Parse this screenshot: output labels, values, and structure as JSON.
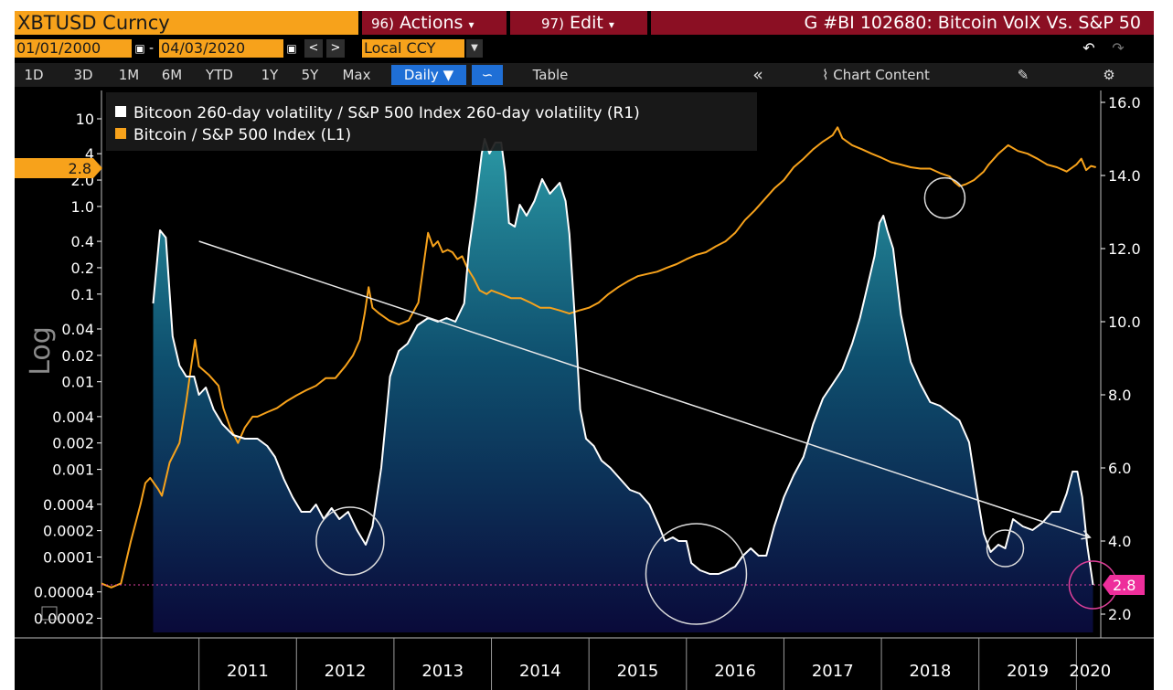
{
  "header": {
    "ticker": "XBTUSD Curncy",
    "actions_num": "96)",
    "actions_label": "Actions",
    "edit_num": "97)",
    "edit_label": "Edit",
    "title": "G #BI 102680: Bitcoin VolX Vs. S&P 50"
  },
  "toolbar": {
    "start_date": "01/01/2000",
    "end_date": "04/03/2020",
    "currency": "Local CCY",
    "periods": [
      "1D",
      "3D",
      "1M",
      "6M",
      "YTD",
      "1Y",
      "5Y",
      "Max"
    ],
    "frequency": "Daily ▼",
    "table_label": "Table",
    "chart_content_label": "Chart Content",
    "collapse_glyph": "«",
    "undo_glyph": "↶",
    "redo_glyph": "↷",
    "gear_glyph": "⚙",
    "edit_glyph": "✎"
  },
  "colors": {
    "orange": "#f7a21b",
    "white_series": "#ffffff",
    "area_top": "#1e8694",
    "area_bottom": "#0a0a3a",
    "ref_line": "#e040a0",
    "header_red": "#8b0f23"
  },
  "chart_data": {
    "type": "line",
    "log_label": "Log",
    "x_labels": [
      "2011",
      "2012",
      "2013",
      "2014",
      "2015",
      "2016",
      "2017",
      "2018",
      "2019",
      "2020"
    ],
    "left_axis": {
      "scale": "log",
      "ticks": [
        "10",
        "4",
        "2.0",
        "1.0",
        "0.4",
        "0.2",
        "0.1",
        "0.04",
        "0.02",
        "0.01",
        "0.004",
        "0.002",
        "0.001",
        "0.0004",
        "0.0002",
        "0.0001",
        "0.00004",
        "0.00002"
      ],
      "current_value_label": "2.8"
    },
    "right_axis": {
      "ticks": [
        "16.0",
        "14.0",
        "12.0",
        "10.0",
        "8.0",
        "6.0",
        "4.0",
        "2.0"
      ],
      "range": [
        2.0,
        16.0
      ],
      "current_value_label": "2.8",
      "reference_line": 2.8
    },
    "series": [
      {
        "name": "Bitcoon 260-day volatility / S&P 500 Index 260-day volatility (R1)",
        "axis": "right",
        "style": "area",
        "points": [
          [
            2010.53,
            10.5
          ],
          [
            2010.6,
            12.5
          ],
          [
            2010.66,
            12.3
          ],
          [
            2010.73,
            9.6
          ],
          [
            2010.8,
            8.8
          ],
          [
            2010.87,
            8.5
          ],
          [
            2010.95,
            8.5
          ],
          [
            2011.0,
            8.0
          ],
          [
            2011.07,
            8.2
          ],
          [
            2011.15,
            7.6
          ],
          [
            2011.24,
            7.2
          ],
          [
            2011.35,
            6.9
          ],
          [
            2011.47,
            6.8
          ],
          [
            2011.6,
            6.8
          ],
          [
            2011.7,
            6.6
          ],
          [
            2011.78,
            6.3
          ],
          [
            2011.87,
            5.7
          ],
          [
            2011.96,
            5.2
          ],
          [
            2012.05,
            4.8
          ],
          [
            2012.14,
            4.8
          ],
          [
            2012.2,
            5.0
          ],
          [
            2012.28,
            4.6
          ],
          [
            2012.36,
            4.9
          ],
          [
            2012.44,
            4.6
          ],
          [
            2012.53,
            4.8
          ],
          [
            2012.62,
            4.3
          ],
          [
            2012.71,
            3.9
          ],
          [
            2012.78,
            4.4
          ],
          [
            2012.87,
            6.0
          ],
          [
            2012.96,
            8.5
          ],
          [
            2013.05,
            9.2
          ],
          [
            2013.14,
            9.4
          ],
          [
            2013.24,
            9.9
          ],
          [
            2013.35,
            10.1
          ],
          [
            2013.45,
            10.0
          ],
          [
            2013.54,
            10.1
          ],
          [
            2013.63,
            10.0
          ],
          [
            2013.72,
            10.5
          ],
          [
            2013.77,
            12.0
          ],
          [
            2013.84,
            13.3
          ],
          [
            2013.9,
            14.6
          ],
          [
            2013.93,
            15.0
          ],
          [
            2013.98,
            14.6
          ],
          [
            2014.04,
            14.9
          ],
          [
            2014.1,
            14.9
          ],
          [
            2014.14,
            14.1
          ],
          [
            2014.18,
            12.7
          ],
          [
            2014.24,
            12.6
          ],
          [
            2014.29,
            13.2
          ],
          [
            2014.36,
            12.9
          ],
          [
            2014.44,
            13.3
          ],
          [
            2014.52,
            13.9
          ],
          [
            2014.6,
            13.5
          ],
          [
            2014.7,
            13.8
          ],
          [
            2014.76,
            13.3
          ],
          [
            2014.8,
            12.4
          ],
          [
            2014.87,
            9.5
          ],
          [
            2014.91,
            7.6
          ],
          [
            2014.97,
            6.8
          ],
          [
            2015.05,
            6.6
          ],
          [
            2015.13,
            6.2
          ],
          [
            2015.22,
            6.0
          ],
          [
            2015.32,
            5.7
          ],
          [
            2015.42,
            5.4
          ],
          [
            2015.52,
            5.3
          ],
          [
            2015.62,
            5.0
          ],
          [
            2015.72,
            4.4
          ],
          [
            2015.78,
            4.0
          ],
          [
            2015.86,
            4.1
          ],
          [
            2015.92,
            4.0
          ],
          [
            2016.0,
            4.0
          ],
          [
            2016.05,
            3.4
          ],
          [
            2016.14,
            3.2
          ],
          [
            2016.24,
            3.1
          ],
          [
            2016.33,
            3.1
          ],
          [
            2016.42,
            3.2
          ],
          [
            2016.5,
            3.3
          ],
          [
            2016.58,
            3.6
          ],
          [
            2016.66,
            3.8
          ],
          [
            2016.74,
            3.6
          ],
          [
            2016.82,
            3.6
          ],
          [
            2016.9,
            4.4
          ],
          [
            2017.0,
            5.2
          ],
          [
            2017.1,
            5.8
          ],
          [
            2017.2,
            6.3
          ],
          [
            2017.3,
            7.2
          ],
          [
            2017.4,
            7.9
          ],
          [
            2017.5,
            8.3
          ],
          [
            2017.6,
            8.7
          ],
          [
            2017.7,
            9.4
          ],
          [
            2017.78,
            10.1
          ],
          [
            2017.86,
            11.0
          ],
          [
            2017.93,
            11.8
          ],
          [
            2017.98,
            12.7
          ],
          [
            2018.02,
            12.9
          ],
          [
            2018.06,
            12.5
          ],
          [
            2018.12,
            12.0
          ],
          [
            2018.2,
            10.2
          ],
          [
            2018.3,
            8.9
          ],
          [
            2018.4,
            8.3
          ],
          [
            2018.5,
            7.8
          ],
          [
            2018.6,
            7.7
          ],
          [
            2018.7,
            7.5
          ],
          [
            2018.8,
            7.3
          ],
          [
            2018.9,
            6.7
          ],
          [
            2018.98,
            5.3
          ],
          [
            2019.05,
            4.2
          ],
          [
            2019.12,
            3.7
          ],
          [
            2019.2,
            3.9
          ],
          [
            2019.27,
            3.8
          ],
          [
            2019.35,
            4.6
          ],
          [
            2019.45,
            4.4
          ],
          [
            2019.55,
            4.3
          ],
          [
            2019.65,
            4.5
          ],
          [
            2019.75,
            4.8
          ],
          [
            2019.83,
            4.8
          ],
          [
            2019.9,
            5.3
          ],
          [
            2019.96,
            5.9
          ],
          [
            2020.01,
            5.9
          ],
          [
            2020.06,
            5.2
          ],
          [
            2020.11,
            3.9
          ],
          [
            2020.17,
            2.8
          ]
        ]
      },
      {
        "name": "Bitcoin / S&P 500 Index (L1)",
        "axis": "left",
        "style": "line",
        "points": [
          [
            2010.0,
            5e-05
          ],
          [
            2010.1,
            4.5e-05
          ],
          [
            2010.2,
            5e-05
          ],
          [
            2010.3,
            0.00015
          ],
          [
            2010.4,
            0.0004
          ],
          [
            2010.45,
            0.0007
          ],
          [
            2010.5,
            0.0008
          ],
          [
            2010.58,
            0.0006
          ],
          [
            2010.62,
            0.0005
          ],
          [
            2010.7,
            0.0012
          ],
          [
            2010.8,
            0.002
          ],
          [
            2010.87,
            0.006
          ],
          [
            2010.92,
            0.015
          ],
          [
            2010.96,
            0.03
          ],
          [
            2011.0,
            0.015
          ],
          [
            2011.1,
            0.012
          ],
          [
            2011.2,
            0.009
          ],
          [
            2011.25,
            0.005
          ],
          [
            2011.32,
            0.003
          ],
          [
            2011.4,
            0.002
          ],
          [
            2011.47,
            0.003
          ],
          [
            2011.55,
            0.004
          ],
          [
            2011.6,
            0.004
          ],
          [
            2011.7,
            0.0045
          ],
          [
            2011.8,
            0.005
          ],
          [
            2011.9,
            0.006
          ],
          [
            2012.0,
            0.007
          ],
          [
            2012.1,
            0.008
          ],
          [
            2012.2,
            0.009
          ],
          [
            2012.3,
            0.011
          ],
          [
            2012.4,
            0.011
          ],
          [
            2012.5,
            0.015
          ],
          [
            2012.58,
            0.02
          ],
          [
            2012.65,
            0.03
          ],
          [
            2012.7,
            0.06
          ],
          [
            2012.74,
            0.12
          ],
          [
            2012.78,
            0.07
          ],
          [
            2012.85,
            0.06
          ],
          [
            2012.95,
            0.05
          ],
          [
            2013.05,
            0.045
          ],
          [
            2013.15,
            0.05
          ],
          [
            2013.25,
            0.08
          ],
          [
            2013.3,
            0.2
          ],
          [
            2013.35,
            0.5
          ],
          [
            2013.4,
            0.35
          ],
          [
            2013.45,
            0.4
          ],
          [
            2013.5,
            0.3
          ],
          [
            2013.55,
            0.32
          ],
          [
            2013.6,
            0.3
          ],
          [
            2013.65,
            0.25
          ],
          [
            2013.7,
            0.27
          ],
          [
            2013.75,
            0.2
          ],
          [
            2013.82,
            0.15
          ],
          [
            2013.88,
            0.11
          ],
          [
            2013.95,
            0.1
          ],
          [
            2014.0,
            0.11
          ],
          [
            2014.1,
            0.1
          ],
          [
            2014.2,
            0.09
          ],
          [
            2014.3,
            0.09
          ],
          [
            2014.4,
            0.08
          ],
          [
            2014.5,
            0.07
          ],
          [
            2014.6,
            0.07
          ],
          [
            2014.7,
            0.065
          ],
          [
            2014.8,
            0.06
          ],
          [
            2014.9,
            0.065
          ],
          [
            2015.0,
            0.07
          ],
          [
            2015.1,
            0.08
          ],
          [
            2015.2,
            0.1
          ],
          [
            2015.3,
            0.12
          ],
          [
            2015.4,
            0.14
          ],
          [
            2015.5,
            0.16
          ],
          [
            2015.6,
            0.17
          ],
          [
            2015.7,
            0.18
          ],
          [
            2015.8,
            0.2
          ],
          [
            2015.9,
            0.22
          ],
          [
            2016.0,
            0.25
          ],
          [
            2016.1,
            0.28
          ],
          [
            2016.2,
            0.3
          ],
          [
            2016.3,
            0.35
          ],
          [
            2016.4,
            0.4
          ],
          [
            2016.5,
            0.5
          ],
          [
            2016.6,
            0.7
          ],
          [
            2016.7,
            0.9
          ],
          [
            2016.8,
            1.2
          ],
          [
            2016.9,
            1.6
          ],
          [
            2017.0,
            2.0
          ],
          [
            2017.1,
            2.8
          ],
          [
            2017.2,
            3.5
          ],
          [
            2017.3,
            4.5
          ],
          [
            2017.4,
            5.5
          ],
          [
            2017.5,
            6.5
          ],
          [
            2017.55,
            8.0
          ],
          [
            2017.6,
            6.0
          ],
          [
            2017.7,
            5.0
          ],
          [
            2017.8,
            4.5
          ],
          [
            2017.9,
            4.0
          ],
          [
            2018.0,
            3.6
          ],
          [
            2018.1,
            3.2
          ],
          [
            2018.2,
            3.0
          ],
          [
            2018.3,
            2.8
          ],
          [
            2018.4,
            2.7
          ],
          [
            2018.5,
            2.7
          ],
          [
            2018.6,
            2.4
          ],
          [
            2018.7,
            2.2
          ],
          [
            2018.75,
            1.9
          ],
          [
            2018.8,
            1.7
          ],
          [
            2018.87,
            1.8
          ],
          [
            2018.95,
            2.0
          ],
          [
            2019.05,
            2.5
          ],
          [
            2019.1,
            3.0
          ],
          [
            2019.2,
            4.0
          ],
          [
            2019.3,
            5.0
          ],
          [
            2019.4,
            4.3
          ],
          [
            2019.5,
            4.0
          ],
          [
            2019.6,
            3.5
          ],
          [
            2019.7,
            3.0
          ],
          [
            2019.8,
            2.8
          ],
          [
            2019.9,
            2.5
          ],
          [
            2020.0,
            3.0
          ],
          [
            2020.05,
            3.5
          ],
          [
            2020.1,
            2.6
          ],
          [
            2020.15,
            2.9
          ],
          [
            2020.2,
            2.8
          ]
        ]
      }
    ],
    "trendline": {
      "from": [
        2011.0,
        12.2
      ],
      "to": [
        2020.14,
        4.1
      ]
    },
    "circles": [
      {
        "x": 2012.55,
        "y": 4.0,
        "r": 37
      },
      {
        "x": 2016.1,
        "y": 3.1,
        "r": 55
      },
      {
        "x": 2018.65,
        "y": 1.25,
        "r": 22
      },
      {
        "x": 2019.27,
        "y": 3.8,
        "r": 20
      },
      {
        "x": 2020.17,
        "y": 2.8,
        "r": 26
      }
    ]
  }
}
